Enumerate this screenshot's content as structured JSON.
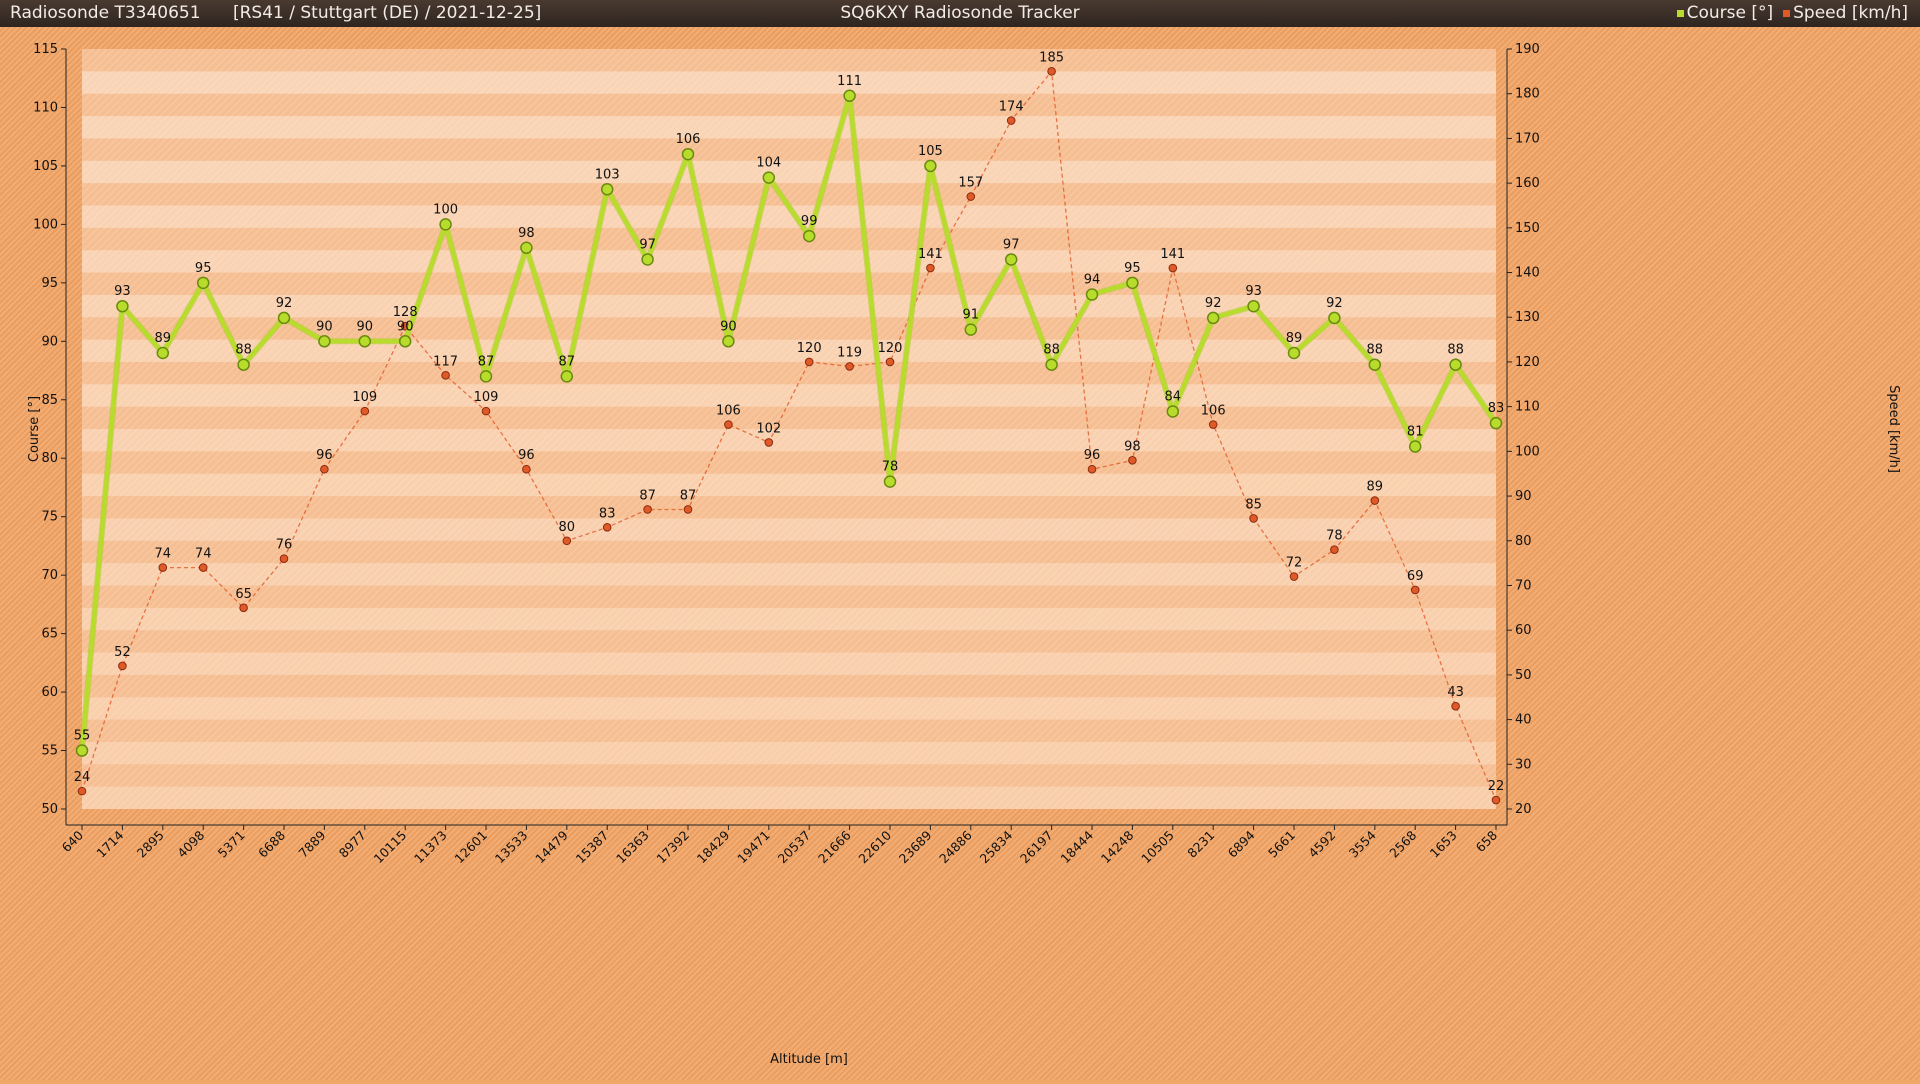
{
  "header": {
    "left_title": "Radiosonde T3340651      [RS41 / Stuttgart (DE) / 2021-12-25]",
    "center_title": "SQ6KXY Radiosonde Tracker",
    "legend": [
      {
        "label": "Course [°]",
        "color": "#b8dc2c"
      },
      {
        "label": "Speed [km/h]",
        "color": "#e05a28"
      }
    ]
  },
  "chart_data": {
    "type": "line",
    "xlabel": "Altitude [m]",
    "ylabel_left": "Course [°]",
    "ylabel_right": "Speed [km/h]",
    "ylim_left": [
      50,
      115
    ],
    "ylim_right": [
      20,
      190
    ],
    "yticks_left": [
      50,
      55,
      60,
      65,
      70,
      75,
      80,
      85,
      90,
      95,
      100,
      105,
      110,
      115
    ],
    "yticks_right": [
      20,
      30,
      40,
      50,
      60,
      70,
      80,
      90,
      100,
      110,
      120,
      130,
      140,
      150,
      160,
      170,
      180,
      190
    ],
    "categories": [
      "640",
      "1714",
      "2895",
      "4098",
      "5371",
      "6688",
      "7889",
      "8977",
      "10115",
      "11373",
      "12601",
      "13533",
      "14479",
      "15387",
      "16363",
      "17392",
      "18429",
      "19471",
      "20537",
      "21666",
      "22610",
      "23689",
      "24886",
      "25834",
      "26197",
      "18444",
      "14248",
      "10505",
      "8231",
      "6894",
      "5661",
      "4592",
      "3554",
      "2568",
      "1653",
      "658"
    ],
    "series": [
      {
        "name": "Course [°]",
        "axis": "left",
        "color": "#b8dc2c",
        "values": [
          55,
          93,
          89,
          95,
          88,
          92,
          90,
          90,
          90,
          100,
          87,
          98,
          87,
          103,
          97,
          106,
          90,
          104,
          99,
          111,
          78,
          105,
          91,
          97,
          88,
          94,
          95,
          84,
          92,
          93,
          89,
          92,
          88,
          81,
          88,
          83
        ]
      },
      {
        "name": "Speed [km/h]",
        "axis": "right",
        "color": "#e05a28",
        "values": [
          24,
          52,
          74,
          74,
          65,
          76,
          96,
          109,
          128,
          117,
          109,
          96,
          80,
          83,
          87,
          87,
          106,
          102,
          120,
          119,
          120,
          141,
          157,
          174,
          185,
          96,
          98,
          141,
          106,
          85,
          72,
          78,
          89,
          69,
          43,
          22
        ]
      }
    ],
    "grid": true,
    "legend_position": "top-right"
  }
}
